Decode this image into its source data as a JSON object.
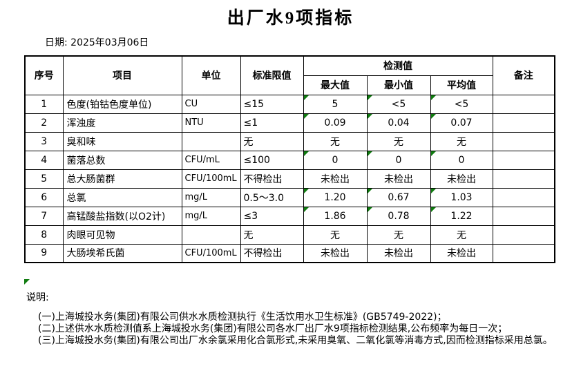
{
  "title": "出厂水9项指标",
  "date_label": "日期: 2025年03月06日",
  "colors": {
    "border": "#000000",
    "flag_green": "#107C10",
    "background": "#FFFFFF"
  },
  "icons": {
    "excel_flag": "green-corner-triangle-marker"
  },
  "table": {
    "headers": {
      "seq": "序号",
      "item": "项目",
      "unit": "单位",
      "limit": "标准限值",
      "detection": "检测值",
      "max": "最大值",
      "min": "最小值",
      "avg": "平均值",
      "remark": "备注"
    },
    "rows": [
      {
        "seq": "1",
        "item": "色度(铂钴色度单位)",
        "unit": "CU",
        "limit": "≤15",
        "max": "5",
        "min": "<5",
        "avg": "<5",
        "remark": "",
        "flagged": true
      },
      {
        "seq": "2",
        "item": "浑浊度",
        "unit": "NTU",
        "limit": "≤1",
        "max": "0.09",
        "min": "0.04",
        "avg": "0.07",
        "remark": "",
        "flagged": true
      },
      {
        "seq": "3",
        "item": "臭和味",
        "unit": "",
        "limit": "无",
        "max": "无",
        "min": "无",
        "avg": "无",
        "remark": "",
        "flagged": false
      },
      {
        "seq": "4",
        "item": "菌落总数",
        "unit": "CFU/mL",
        "limit": "≤100",
        "max": "0",
        "min": "0",
        "avg": "0",
        "remark": "",
        "flagged": true
      },
      {
        "seq": "5",
        "item": "总大肠菌群",
        "unit": "CFU/100mL",
        "limit": "不得检出",
        "max": "未检出",
        "min": "未检出",
        "avg": "未检出",
        "remark": "",
        "flagged": false
      },
      {
        "seq": "6",
        "item": "总氯",
        "unit": "mg/L",
        "limit": "0.5～3.0",
        "max": "1.20",
        "min": "0.67",
        "avg": "1.03",
        "remark": "",
        "flagged": true
      },
      {
        "seq": "7",
        "item": "高锰酸盐指数(以O2计)",
        "unit": "mg/L",
        "limit": "≤3",
        "max": "1.86",
        "min": "0.78",
        "avg": "1.22",
        "remark": "",
        "flagged": true
      },
      {
        "seq": "8",
        "item": "肉眼可见物",
        "unit": "",
        "limit": "无",
        "max": "无",
        "min": "无",
        "avg": "无",
        "remark": "",
        "flagged": false
      },
      {
        "seq": "9",
        "item": "大肠埃希氏菌",
        "unit": "CFU/100mL",
        "limit": "不得检出",
        "max": "未检出",
        "min": "未检出",
        "avg": "未检出",
        "remark": "",
        "flagged": false
      }
    ]
  },
  "notes": {
    "label": "说明:",
    "lines": [
      "(一)上海城投水务(集团)有限公司供水水质检测执行《生活饮用水卫生标准》(GB5749-2022)；",
      "(二)上述供水水质检测值系上海城投水务(集团)有限公司各水厂出厂水9项指标检测结果,公布频率为每日一次；",
      "(三)上海城投水务(集团)有限公司出厂水余氯采用化合氯形式,未采用臭氧、二氧化氯等消毒方式,因而检测指标采用总氯。"
    ]
  }
}
